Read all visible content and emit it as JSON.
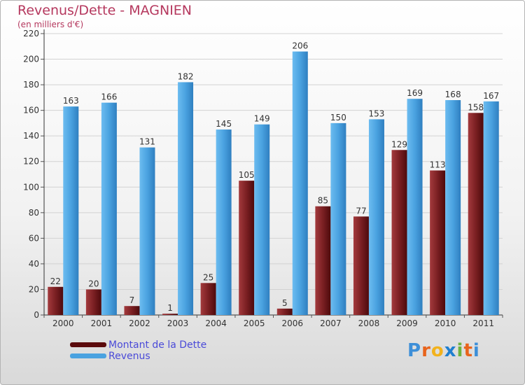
{
  "title": "Revenus/Dette - MAGNIEN",
  "subtitle": "(en milliers d'€)",
  "logo_text": "Proxiti",
  "colors": {
    "dette": "#7a1f22",
    "revenus": "#4aa2e0",
    "title": "#b5385e",
    "legend_text": "#4a4ad8"
  },
  "chart_data": {
    "type": "bar",
    "title": "Revenus/Dette - MAGNIEN",
    "subtitle": "(en milliers d'€)",
    "categories": [
      "2000",
      "2001",
      "2002",
      "2003",
      "2004",
      "2005",
      "2006",
      "2007",
      "2008",
      "2009",
      "2010",
      "2011"
    ],
    "series": [
      {
        "name": "Montant de la Dette",
        "values": [
          22,
          20,
          7,
          1,
          25,
          105,
          5,
          85,
          77,
          129,
          113,
          158
        ]
      },
      {
        "name": "Revenus",
        "values": [
          163,
          166,
          131,
          182,
          145,
          149,
          206,
          150,
          153,
          169,
          168,
          167
        ]
      }
    ],
    "ylim": [
      0,
      220
    ],
    "yticks": [
      0,
      20,
      40,
      60,
      80,
      100,
      120,
      140,
      160,
      180,
      200,
      220
    ],
    "grid": true,
    "legend": "bottom-left"
  }
}
